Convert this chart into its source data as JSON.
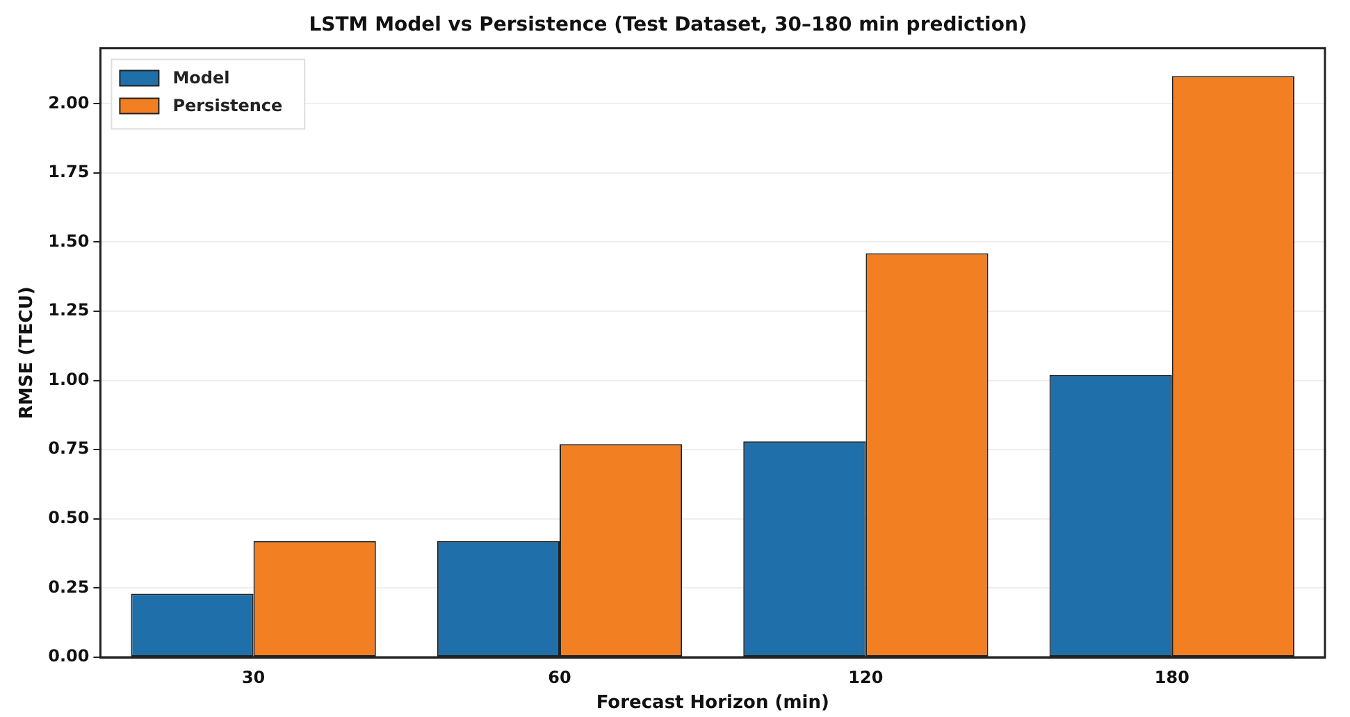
{
  "chart_data": {
    "type": "bar",
    "title": "LSTM Model vs Persistence (Test Dataset, 30–180 min prediction)",
    "xlabel": "Forecast Horizon (min)",
    "ylabel": "RMSE (TECU)",
    "categories": [
      "30",
      "60",
      "120",
      "180"
    ],
    "series": [
      {
        "name": "Model",
        "color": "#1f6fab",
        "values": [
          0.23,
          0.42,
          0.78,
          1.02
        ]
      },
      {
        "name": "Persistence",
        "color": "#f28022",
        "values": [
          0.42,
          0.77,
          1.46,
          2.1
        ]
      }
    ],
    "ylim": [
      0,
      2.2
    ],
    "yticks": [
      {
        "value": 0,
        "label": "0.00"
      },
      {
        "value": 0.25,
        "label": "0.25"
      },
      {
        "value": 0.5,
        "label": "0.50"
      },
      {
        "value": 0.75,
        "label": "0.75"
      },
      {
        "value": 1,
        "label": "1.00"
      },
      {
        "value": 1.25,
        "label": "1.25"
      },
      {
        "value": 1.5,
        "label": "1.50"
      },
      {
        "value": 1.75,
        "label": "1.75"
      },
      {
        "value": 2,
        "label": "2.00"
      }
    ],
    "grid": "y",
    "legend": "top left"
  }
}
